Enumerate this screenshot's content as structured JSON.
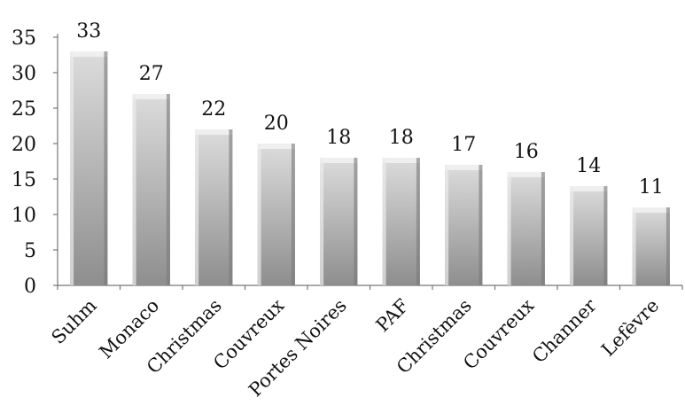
{
  "chart_data": {
    "type": "bar",
    "categories": [
      "Suhm",
      "Monaco",
      "Christmas",
      "Couvreux",
      "Portes Noires",
      "PAF",
      "Christmas",
      "Couvreux",
      "Channer",
      "Lefèvre"
    ],
    "values": [
      33,
      27,
      22,
      20,
      18,
      18,
      17,
      16,
      14,
      11
    ],
    "title": "",
    "xlabel": "",
    "ylabel": "",
    "ylim": [
      0,
      35
    ],
    "yticks": [
      0,
      5,
      10,
      15,
      20,
      25,
      30,
      35
    ],
    "grid": false,
    "legend": "none",
    "bar_color_light": "#dcdcdc",
    "bar_color_dark": "#8e8e8e"
  }
}
